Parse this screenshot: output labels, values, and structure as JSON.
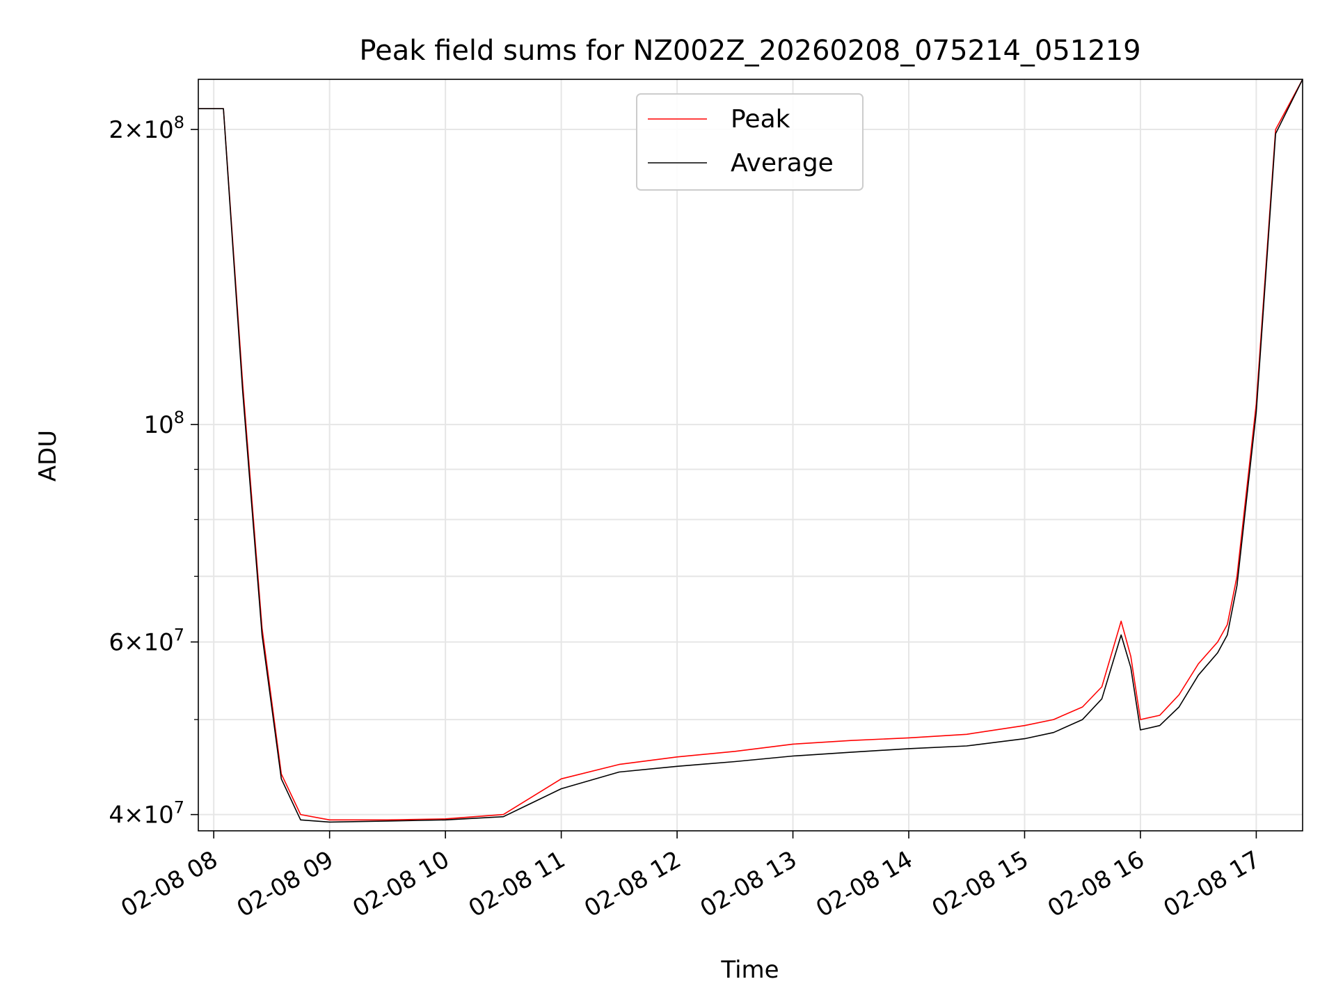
{
  "chart_data": {
    "type": "line",
    "title": "Peak field sums for NZ002Z_20260208_075214_051219",
    "xlabel": "Time",
    "ylabel": "ADU",
    "y_scale": "log",
    "ylim": [
      38500000,
      225000000
    ],
    "xlim": [
      "2026-02-08 07:52",
      "2026-02-08 17:24"
    ],
    "grid": true,
    "legend_position": "upper center",
    "x_ticks": [
      {
        "value": "2026-02-08 08:00",
        "label": "02-08 08"
      },
      {
        "value": "2026-02-08 09:00",
        "label": "02-08 09"
      },
      {
        "value": "2026-02-08 10:00",
        "label": "02-08 10"
      },
      {
        "value": "2026-02-08 11:00",
        "label": "02-08 11"
      },
      {
        "value": "2026-02-08 12:00",
        "label": "02-08 12"
      },
      {
        "value": "2026-02-08 13:00",
        "label": "02-08 13"
      },
      {
        "value": "2026-02-08 14:00",
        "label": "02-08 14"
      },
      {
        "value": "2026-02-08 15:00",
        "label": "02-08 15"
      },
      {
        "value": "2026-02-08 16:00",
        "label": "02-08 16"
      },
      {
        "value": "2026-02-08 17:00",
        "label": "02-08 17"
      }
    ],
    "y_major_ticks": [
      {
        "value": 40000000,
        "mantissa": "4",
        "exponent": "7"
      },
      {
        "value": 60000000,
        "mantissa": "6",
        "exponent": "7"
      },
      {
        "value": 100000000,
        "mantissa": "",
        "exponent": "8"
      },
      {
        "value": 200000000,
        "mantissa": "2",
        "exponent": "8"
      }
    ],
    "y_minor_ticks": [
      50000000,
      70000000,
      80000000,
      90000000
    ],
    "series": [
      {
        "name": "Peak",
        "color": "#ff0000",
        "x": [
          "2026-02-08 07:52",
          "2026-02-08 08:05",
          "2026-02-08 08:15",
          "2026-02-08 08:25",
          "2026-02-08 08:35",
          "2026-02-08 08:45",
          "2026-02-08 09:00",
          "2026-02-08 09:30",
          "2026-02-08 10:00",
          "2026-02-08 10:30",
          "2026-02-08 11:00",
          "2026-02-08 11:30",
          "2026-02-08 12:00",
          "2026-02-08 12:30",
          "2026-02-08 13:00",
          "2026-02-08 13:30",
          "2026-02-08 14:00",
          "2026-02-08 14:30",
          "2026-02-08 15:00",
          "2026-02-08 15:15",
          "2026-02-08 15:30",
          "2026-02-08 15:40",
          "2026-02-08 15:50",
          "2026-02-08 15:55",
          "2026-02-08 16:00",
          "2026-02-08 16:10",
          "2026-02-08 16:20",
          "2026-02-08 16:30",
          "2026-02-08 16:40",
          "2026-02-08 16:45",
          "2026-02-08 16:50",
          "2026-02-08 17:00",
          "2026-02-08 17:10",
          "2026-02-08 17:24"
        ],
        "y": [
          210000000,
          210000000,
          110000000,
          62000000,
          44000000,
          40000000,
          39500000,
          39500000,
          39600000,
          40000000,
          43500000,
          45000000,
          45800000,
          46400000,
          47200000,
          47600000,
          47900000,
          48300000,
          49300000,
          50000000,
          51500000,
          54000000,
          63000000,
          58000000,
          50000000,
          50500000,
          53000000,
          57000000,
          60000000,
          62500000,
          70000000,
          105000000,
          200000000,
          225000000
        ]
      },
      {
        "name": "Average",
        "color": "#000000",
        "x": [
          "2026-02-08 07:52",
          "2026-02-08 08:05",
          "2026-02-08 08:15",
          "2026-02-08 08:25",
          "2026-02-08 08:35",
          "2026-02-08 08:45",
          "2026-02-08 09:00",
          "2026-02-08 09:30",
          "2026-02-08 10:00",
          "2026-02-08 10:30",
          "2026-02-08 11:00",
          "2026-02-08 11:30",
          "2026-02-08 12:00",
          "2026-02-08 12:30",
          "2026-02-08 13:00",
          "2026-02-08 13:30",
          "2026-02-08 14:00",
          "2026-02-08 14:30",
          "2026-02-08 15:00",
          "2026-02-08 15:15",
          "2026-02-08 15:30",
          "2026-02-08 15:40",
          "2026-02-08 15:50",
          "2026-02-08 15:55",
          "2026-02-08 16:00",
          "2026-02-08 16:10",
          "2026-02-08 16:20",
          "2026-02-08 16:30",
          "2026-02-08 16:40",
          "2026-02-08 16:45",
          "2026-02-08 16:50",
          "2026-02-08 17:00",
          "2026-02-08 17:10",
          "2026-02-08 17:24"
        ],
        "y": [
          210000000,
          210000000,
          108000000,
          61000000,
          43500000,
          39500000,
          39300000,
          39400000,
          39500000,
          39800000,
          42500000,
          44200000,
          44800000,
          45300000,
          45900000,
          46300000,
          46700000,
          47000000,
          47800000,
          48500000,
          50000000,
          52500000,
          61000000,
          56500000,
          48800000,
          49300000,
          51500000,
          55500000,
          58500000,
          61000000,
          68500000,
          103000000,
          198000000,
          225000000
        ]
      }
    ]
  }
}
